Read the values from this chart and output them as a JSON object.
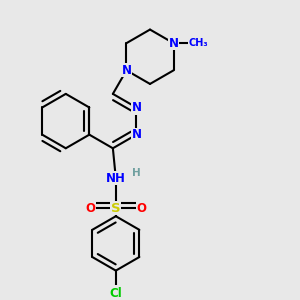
{
  "background_color": "#e8e8e8",
  "atom_colors": {
    "N": "#0000ff",
    "S": "#cccc00",
    "O": "#ff0000",
    "Cl": "#00cc00",
    "C": "#000000",
    "H": "#70a0a0"
  },
  "bond_color": "#000000",
  "bond_width": 1.5,
  "font_size_atom": 8.5
}
